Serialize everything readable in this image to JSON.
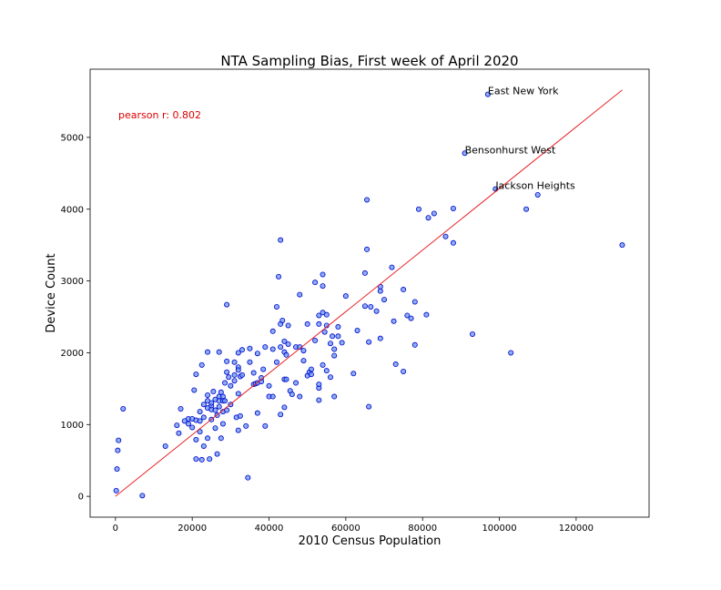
{
  "chart_data": {
    "type": "scatter",
    "title": "NTA Sampling Bias, First week of April 2020",
    "xlabel": "2010 Census Population",
    "ylabel": "Device Count",
    "xlim": [
      -6600,
      139000
    ],
    "ylim": [
      -290,
      5950
    ],
    "xticks": [
      0,
      20000,
      40000,
      60000,
      80000,
      100000,
      120000
    ],
    "xtick_labels": [
      "0",
      "20000",
      "40000",
      "60000",
      "80000",
      "100000",
      "120000"
    ],
    "yticks": [
      0,
      1000,
      2000,
      3000,
      4000,
      5000
    ],
    "ytick_labels": [
      "0",
      "1000",
      "2000",
      "3000",
      "4000",
      "5000"
    ],
    "grid": false,
    "stat_label": "pearson r: 0.802",
    "colors": {
      "points_fill": "#6495ed",
      "points_edge": "#0000cd",
      "fit_line": "#e8262a",
      "stat_text": "#dd0000"
    },
    "fit_line": {
      "x": [
        0,
        132000
      ],
      "y": [
        0,
        5660
      ]
    },
    "annotations": [
      {
        "text": "East New York",
        "x": 97000,
        "y": 5600
      },
      {
        "text": "Bensonhurst West",
        "x": 91000,
        "y": 4780
      },
      {
        "text": "Jackson Heights",
        "x": 99000,
        "y": 4280
      }
    ],
    "series": [
      {
        "points": [
          [
            200,
            80
          ],
          [
            400,
            380
          ],
          [
            600,
            640
          ],
          [
            800,
            780
          ],
          [
            2000,
            1220
          ],
          [
            7000,
            10
          ],
          [
            13000,
            700
          ],
          [
            16000,
            990
          ],
          [
            16500,
            880
          ],
          [
            17000,
            1220
          ],
          [
            18000,
            1050
          ],
          [
            19000,
            1010
          ],
          [
            19000,
            1080
          ],
          [
            20000,
            1080
          ],
          [
            20000,
            960
          ],
          [
            20500,
            1480
          ],
          [
            21000,
            1700
          ],
          [
            21000,
            1060
          ],
          [
            21000,
            790
          ],
          [
            21000,
            520
          ],
          [
            22000,
            900
          ],
          [
            22000,
            1180
          ],
          [
            22000,
            1050
          ],
          [
            22500,
            1830
          ],
          [
            22500,
            510
          ],
          [
            23000,
            1280
          ],
          [
            23000,
            1100
          ],
          [
            23000,
            700
          ],
          [
            24000,
            1410
          ],
          [
            24000,
            1330
          ],
          [
            24000,
            1230
          ],
          [
            24000,
            810
          ],
          [
            24000,
            2010
          ],
          [
            24500,
            520
          ],
          [
            25000,
            1260
          ],
          [
            25000,
            1070
          ],
          [
            25000,
            1210
          ],
          [
            25000,
            1300
          ],
          [
            25500,
            1460
          ],
          [
            26000,
            1200
          ],
          [
            26000,
            1350
          ],
          [
            26000,
            950
          ],
          [
            26500,
            1130
          ],
          [
            26500,
            590
          ],
          [
            27000,
            2010
          ],
          [
            27000,
            1390
          ],
          [
            27000,
            1250
          ],
          [
            27000,
            1330
          ],
          [
            27500,
            1450
          ],
          [
            27500,
            810
          ],
          [
            28000,
            1390
          ],
          [
            28000,
            1330
          ],
          [
            28000,
            1180
          ],
          [
            28000,
            1010
          ],
          [
            28500,
            1580
          ],
          [
            28500,
            1330
          ],
          [
            29000,
            1730
          ],
          [
            29000,
            2670
          ],
          [
            29000,
            1200
          ],
          [
            29000,
            1880
          ],
          [
            29500,
            1660
          ],
          [
            30000,
            1280
          ],
          [
            30000,
            1540
          ],
          [
            31000,
            1870
          ],
          [
            31000,
            1610
          ],
          [
            31000,
            1690
          ],
          [
            31500,
            1100
          ],
          [
            32000,
            2000
          ],
          [
            32000,
            1800
          ],
          [
            32000,
            1760
          ],
          [
            32000,
            1430
          ],
          [
            32000,
            920
          ],
          [
            32500,
            1120
          ],
          [
            32500,
            1670
          ],
          [
            33000,
            2040
          ],
          [
            33000,
            1690
          ],
          [
            34000,
            980
          ],
          [
            34500,
            260
          ],
          [
            35000,
            2060
          ],
          [
            35000,
            1870
          ],
          [
            36000,
            1560
          ],
          [
            36000,
            1720
          ],
          [
            36500,
            1570
          ],
          [
            37000,
            1580
          ],
          [
            37000,
            1160
          ],
          [
            37000,
            1990
          ],
          [
            38000,
            1600
          ],
          [
            38000,
            1650
          ],
          [
            38500,
            1770
          ],
          [
            39000,
            2080
          ],
          [
            39000,
            980
          ],
          [
            40000,
            1540
          ],
          [
            40000,
            1390
          ],
          [
            41000,
            2050
          ],
          [
            41000,
            1390
          ],
          [
            41000,
            2300
          ],
          [
            42000,
            1870
          ],
          [
            42000,
            2640
          ],
          [
            42500,
            3060
          ],
          [
            43000,
            3570
          ],
          [
            43000,
            1140
          ],
          [
            43000,
            2080
          ],
          [
            43000,
            2400
          ],
          [
            43500,
            2450
          ],
          [
            44000,
            2160
          ],
          [
            44000,
            2010
          ],
          [
            44000,
            1630
          ],
          [
            44000,
            1240
          ],
          [
            44500,
            1630
          ],
          [
            44500,
            1970
          ],
          [
            45000,
            2120
          ],
          [
            45000,
            2380
          ],
          [
            45500,
            1470
          ],
          [
            46000,
            1420
          ],
          [
            47000,
            2080
          ],
          [
            47000,
            1580
          ],
          [
            48000,
            2810
          ],
          [
            48000,
            1390
          ],
          [
            48000,
            2080
          ],
          [
            49000,
            1890
          ],
          [
            49000,
            2030
          ],
          [
            50000,
            1680
          ],
          [
            50000,
            2400
          ],
          [
            50500,
            1730
          ],
          [
            51000,
            1700
          ],
          [
            51000,
            1770
          ],
          [
            52000,
            2980
          ],
          [
            52000,
            2170
          ],
          [
            53000,
            2520
          ],
          [
            53000,
            1510
          ],
          [
            53000,
            2400
          ],
          [
            53000,
            1560
          ],
          [
            53000,
            1340
          ],
          [
            54000,
            3090
          ],
          [
            54000,
            2930
          ],
          [
            54000,
            2560
          ],
          [
            54000,
            1830
          ],
          [
            54500,
            2290
          ],
          [
            55000,
            2530
          ],
          [
            55000,
            1750
          ],
          [
            55000,
            2380
          ],
          [
            56000,
            1660
          ],
          [
            56000,
            2130
          ],
          [
            56500,
            2230
          ],
          [
            57000,
            1960
          ],
          [
            57000,
            1390
          ],
          [
            57000,
            2050
          ],
          [
            58000,
            2230
          ],
          [
            58000,
            2360
          ],
          [
            59000,
            2140
          ],
          [
            60000,
            2790
          ],
          [
            62000,
            1710
          ],
          [
            63000,
            2310
          ],
          [
            65000,
            3110
          ],
          [
            65000,
            2650
          ],
          [
            65500,
            4130
          ],
          [
            65500,
            3440
          ],
          [
            66000,
            1250
          ],
          [
            66000,
            2150
          ],
          [
            66500,
            2640
          ],
          [
            68000,
            2580
          ],
          [
            69000,
            2200
          ],
          [
            69000,
            2860
          ],
          [
            69000,
            2920
          ],
          [
            70000,
            2740
          ],
          [
            72000,
            3190
          ],
          [
            72500,
            2440
          ],
          [
            73000,
            1840
          ],
          [
            75000,
            2880
          ],
          [
            75000,
            1740
          ],
          [
            76000,
            2520
          ],
          [
            77000,
            2480
          ],
          [
            78000,
            2110
          ],
          [
            78000,
            2710
          ],
          [
            79000,
            4000
          ],
          [
            81000,
            2530
          ],
          [
            81500,
            3880
          ],
          [
            83000,
            3940
          ],
          [
            86000,
            3620
          ],
          [
            88000,
            3530
          ],
          [
            88000,
            4010
          ],
          [
            91000,
            4780
          ],
          [
            93000,
            2260
          ],
          [
            97000,
            5600
          ],
          [
            99000,
            4280
          ],
          [
            103000,
            2000
          ],
          [
            107000,
            4000
          ],
          [
            110000,
            4200
          ],
          [
            132000,
            3500
          ]
        ]
      }
    ]
  }
}
